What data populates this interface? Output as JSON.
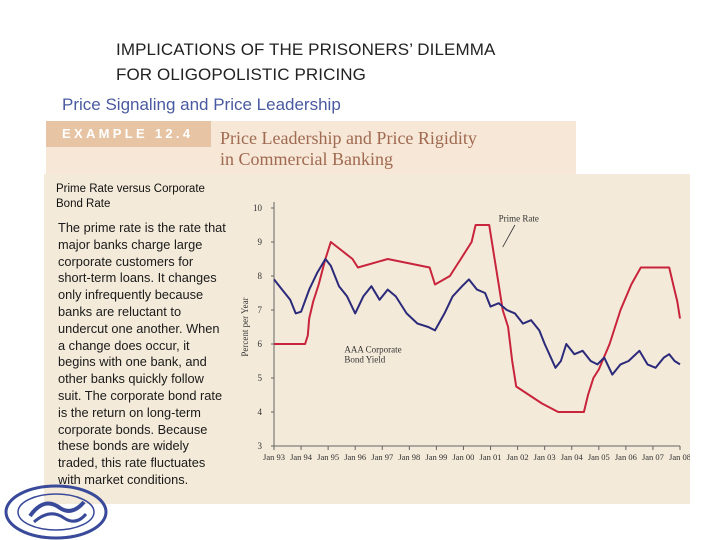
{
  "slide": {
    "title_line1": "IMPLICATIONS OF THE PRISONERS’ DILEMMA",
    "title_line2": "FOR OLIGOPOLISTIC PRICING",
    "subtitle": "Price Signaling and Price Leadership"
  },
  "example": {
    "tag": "EXAMPLE 12.4",
    "title_line1": "Price Leadership and Price Rigidity",
    "title_line2": "in Commercial Banking"
  },
  "sidebar": {
    "heading": "Prime Rate versus Corporate Bond Rate",
    "body": "The prime rate is the rate that major banks charge large corporate customers for short-term loans. It changes only infrequently because banks are reluctant to undercut one another. When a change does occur, it begins with one bank, and other banks quickly follow suit. The corporate bond rate is the return on long-term corporate bonds. Because these bonds are widely traded, this rate fluctuates with market conditions."
  },
  "colors": {
    "prime": "#c8243c",
    "bond": "#2c2a7a",
    "panel": "#f3ead9",
    "subtitle": "#4a5aa0"
  },
  "chart_data": {
    "type": "line",
    "title": "",
    "xlabel": "",
    "ylabel": "Percent per Year",
    "ylim": [
      3,
      10
    ],
    "yticks": [
      "3",
      "4",
      "5",
      "6",
      "7",
      "8",
      "9",
      "10"
    ],
    "x": [
      "Jan 93",
      "Jan 94",
      "Jan 95",
      "Jan 96",
      "Jan 97",
      "Jan 98",
      "Jan 99",
      "Jan 00",
      "Jan 01",
      "Jan 02",
      "Jan 03",
      "Jan 04",
      "Jan 05",
      "Jan 06",
      "Jan 07",
      "Jan 08"
    ],
    "grid": false,
    "series": [
      {
        "name": "Prime Rate",
        "label": "Prime Rate",
        "points": [
          [
            1993.0,
            6.0
          ],
          [
            1994.15,
            6.0
          ],
          [
            1994.25,
            6.25
          ],
          [
            1994.3,
            6.75
          ],
          [
            1994.45,
            7.25
          ],
          [
            1994.65,
            7.75
          ],
          [
            1994.9,
            8.5
          ],
          [
            1995.1,
            9.0
          ],
          [
            1995.5,
            8.75
          ],
          [
            1995.9,
            8.5
          ],
          [
            1996.1,
            8.25
          ],
          [
            1997.2,
            8.5
          ],
          [
            1998.75,
            8.25
          ],
          [
            1998.85,
            8.0
          ],
          [
            1998.95,
            7.75
          ],
          [
            1999.5,
            8.0
          ],
          [
            1999.7,
            8.25
          ],
          [
            1999.9,
            8.5
          ],
          [
            2000.1,
            8.75
          ],
          [
            2000.3,
            9.0
          ],
          [
            2000.45,
            9.5
          ],
          [
            2000.95,
            9.5
          ],
          [
            2001.05,
            9.0
          ],
          [
            2001.15,
            8.5
          ],
          [
            2001.3,
            7.75
          ],
          [
            2001.45,
            7.0
          ],
          [
            2001.65,
            6.5
          ],
          [
            2001.8,
            5.5
          ],
          [
            2001.95,
            4.75
          ],
          [
            2002.9,
            4.25
          ],
          [
            2003.5,
            4.0
          ],
          [
            2004.45,
            4.0
          ],
          [
            2004.6,
            4.5
          ],
          [
            2004.8,
            5.0
          ],
          [
            2005.0,
            5.25
          ],
          [
            2005.4,
            6.0
          ],
          [
            2005.8,
            7.0
          ],
          [
            2006.2,
            7.75
          ],
          [
            2006.55,
            8.25
          ],
          [
            2007.6,
            8.25
          ],
          [
            2007.75,
            7.75
          ],
          [
            2007.9,
            7.25
          ],
          [
            2008.0,
            6.75
          ]
        ]
      },
      {
        "name": "AAA Corporate Bond Yield",
        "label": "AAA Corporate Bond Yield",
        "points": [
          [
            1993.0,
            7.9
          ],
          [
            1993.3,
            7.6
          ],
          [
            1993.6,
            7.3
          ],
          [
            1993.8,
            6.9
          ],
          [
            1994.0,
            6.95
          ],
          [
            1994.3,
            7.6
          ],
          [
            1994.6,
            8.1
          ],
          [
            1994.9,
            8.5
          ],
          [
            1995.1,
            8.3
          ],
          [
            1995.4,
            7.7
          ],
          [
            1995.7,
            7.4
          ],
          [
            1996.0,
            6.9
          ],
          [
            1996.3,
            7.4
          ],
          [
            1996.6,
            7.7
          ],
          [
            1996.9,
            7.3
          ],
          [
            1997.2,
            7.6
          ],
          [
            1997.5,
            7.4
          ],
          [
            1997.9,
            6.9
          ],
          [
            1998.3,
            6.6
          ],
          [
            1998.7,
            6.5
          ],
          [
            1998.95,
            6.4
          ],
          [
            1999.3,
            6.9
          ],
          [
            1999.6,
            7.4
          ],
          [
            1999.95,
            7.7
          ],
          [
            2000.2,
            7.9
          ],
          [
            2000.5,
            7.6
          ],
          [
            2000.8,
            7.5
          ],
          [
            2001.0,
            7.1
          ],
          [
            2001.3,
            7.2
          ],
          [
            2001.6,
            7.0
          ],
          [
            2001.9,
            6.9
          ],
          [
            2002.2,
            6.6
          ],
          [
            2002.5,
            6.7
          ],
          [
            2002.8,
            6.4
          ],
          [
            2003.0,
            6.0
          ],
          [
            2003.4,
            5.3
          ],
          [
            2003.6,
            5.5
          ],
          [
            2003.8,
            6.0
          ],
          [
            2004.1,
            5.7
          ],
          [
            2004.4,
            5.8
          ],
          [
            2004.7,
            5.5
          ],
          [
            2004.95,
            5.4
          ],
          [
            2005.2,
            5.6
          ],
          [
            2005.5,
            5.1
          ],
          [
            2005.8,
            5.4
          ],
          [
            2006.1,
            5.5
          ],
          [
            2006.5,
            5.8
          ],
          [
            2006.8,
            5.4
          ],
          [
            2007.1,
            5.3
          ],
          [
            2007.4,
            5.6
          ],
          [
            2007.6,
            5.7
          ],
          [
            2007.8,
            5.5
          ],
          [
            2008.0,
            5.4
          ]
        ]
      }
    ]
  }
}
